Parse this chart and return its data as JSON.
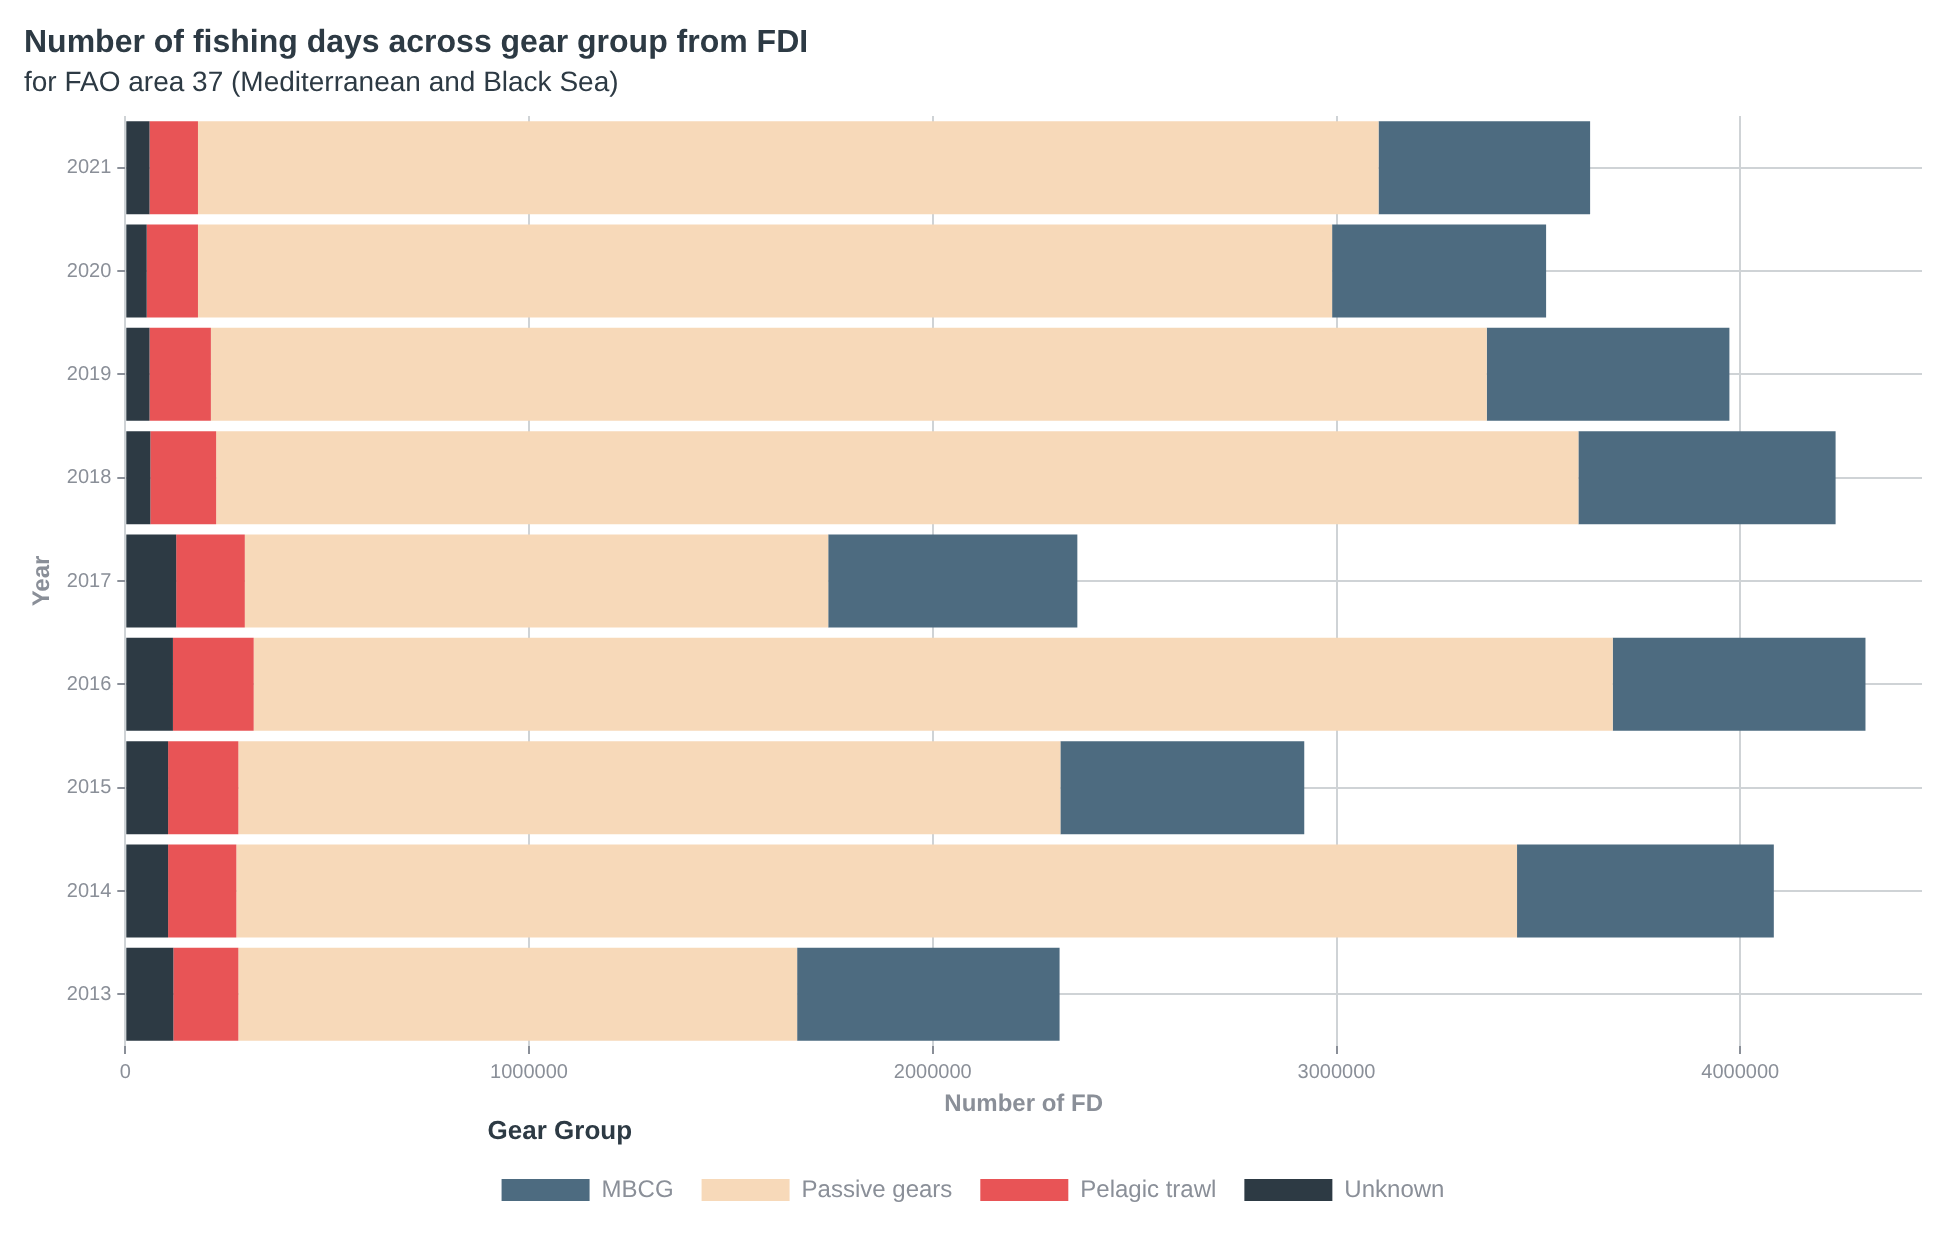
{
  "chart_data": {
    "type": "bar",
    "orientation": "horizontal",
    "stacked": true,
    "title": "Number of fishing days across gear group from FDI",
    "subtitle": "for FAO area 37 (Mediterranean and Black Sea)",
    "xlabel": "Number of FD",
    "ylabel": "Year",
    "legend_title": "Gear Group",
    "legend": "bottom",
    "grid": true,
    "categories": [
      "2021",
      "2020",
      "2019",
      "2018",
      "2017",
      "2016",
      "2015",
      "2014",
      "2013"
    ],
    "series": [
      {
        "name": "Unknown",
        "color": "#2d3a44",
        "values": [
          60000,
          53000,
          60000,
          62000,
          126000,
          118000,
          106000,
          106000,
          119000
        ]
      },
      {
        "name": "Pelagic trawl",
        "color": "#e85456",
        "values": [
          120000,
          127000,
          152000,
          163000,
          170000,
          200000,
          174000,
          169000,
          161000
        ]
      },
      {
        "name": "Passive gears",
        "color": "#f7d9b9",
        "values": [
          2924000,
          2809000,
          3160000,
          3374000,
          1445000,
          3366000,
          2036000,
          3172000,
          1384000
        ]
      },
      {
        "name": "MBCG",
        "color": "#4d6b80",
        "values": [
          524000,
          530000,
          601000,
          637000,
          617000,
          626000,
          604000,
          636000,
          650000
        ]
      }
    ],
    "xlim": [
      0,
      4450000
    ],
    "xticks": [
      0,
      1000000,
      2000000,
      3000000,
      4000000
    ]
  }
}
